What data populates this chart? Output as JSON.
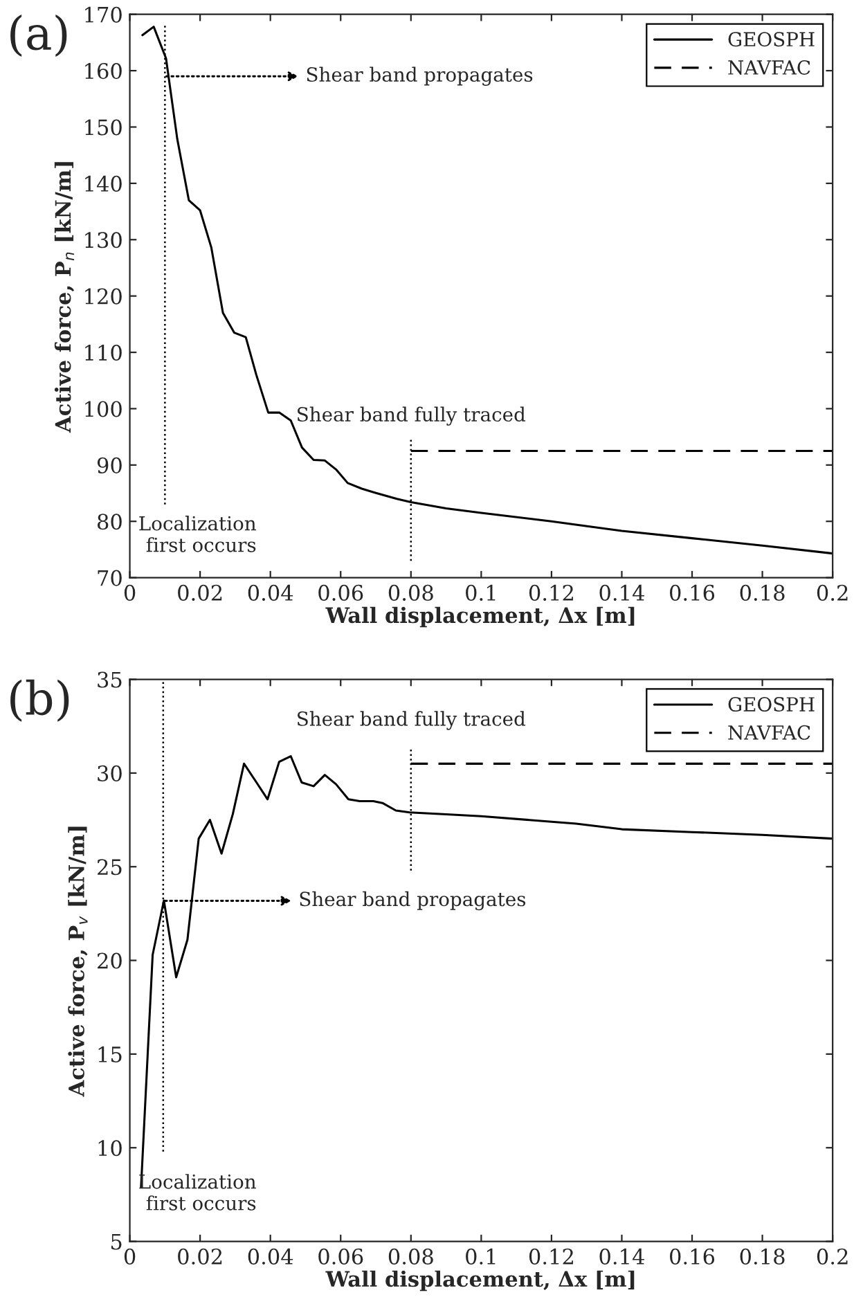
{
  "chart_data": [
    {
      "type": "line",
      "xlabel": "Wall displacement, Δx [m]",
      "ylabel": "Active force, P$_{n}$ [kN/m]",
      "series": [
        {
          "name": "GEOSPH",
          "color": "#000000",
          "line_style": "solid",
          "x": [
            0.0036,
            0.0068,
            0.0103,
            0.0135,
            0.0168,
            0.02,
            0.0232,
            0.0265,
            0.0297,
            0.033,
            0.036,
            0.0394,
            0.0426,
            0.0458,
            0.049,
            0.0523,
            0.0555,
            0.0587,
            0.062,
            0.066,
            0.0697,
            0.076,
            0.08,
            0.09,
            0.1,
            0.12,
            0.14,
            0.16,
            0.18,
            0.2
          ],
          "values": [
            166.3,
            167.8,
            162.2,
            147.9,
            137.0,
            135.2,
            128.6,
            117.0,
            113.5,
            112.7,
            106.0,
            99.3,
            99.3,
            97.9,
            93.1,
            90.9,
            90.8,
            89.2,
            86.8,
            85.8,
            85.1,
            84.0,
            83.4,
            82.3,
            81.5,
            80.0,
            78.3,
            77.0,
            75.7,
            74.3
          ]
        },
        {
          "name": "NAVFAC",
          "color": "#000000",
          "line_style": "dashed",
          "x": [
            0.08,
            0.2
          ],
          "values": [
            92.5,
            92.5
          ]
        }
      ],
      "ref_lines": [
        {
          "axis": "x",
          "value": 0.01,
          "label": "Localization\nfirst occurs",
          "line_style": "dotted"
        },
        {
          "axis": "x",
          "value": 0.08,
          "label": "Shear band fully traced",
          "line_style": "dotted"
        }
      ],
      "annotations": [
        "(a)",
        "Shear band propagates"
      ],
      "xlim": [
        0,
        0.2
      ],
      "xticks": [
        0,
        0.02,
        0.04,
        0.06,
        0.08,
        0.1,
        0.12,
        0.14,
        0.16,
        0.18,
        0.2
      ],
      "ylim": [
        70,
        170
      ],
      "yticks": [
        70,
        80,
        90,
        100,
        110,
        120,
        130,
        140,
        150,
        160,
        170
      ],
      "legend": "top right",
      "grid": false
    },
    {
      "type": "line",
      "xlabel": "Wall displacement, Δx [m]",
      "ylabel": "Active force, P$_{v}$ [kN/m]",
      "series": [
        {
          "name": "GEOSPH",
          "color": "#000000",
          "line_style": "solid",
          "x": [
            0.0032,
            0.0065,
            0.0097,
            0.0132,
            0.0164,
            0.0196,
            0.0228,
            0.0261,
            0.0293,
            0.0325,
            0.0357,
            0.0392,
            0.0425,
            0.0458,
            0.0489,
            0.0523,
            0.0555,
            0.0587,
            0.0622,
            0.0654,
            0.0693,
            0.0719,
            0.0757,
            0.0796,
            0.09,
            0.1,
            0.12,
            0.127,
            0.14,
            0.16,
            0.18,
            0.2
          ],
          "values": [
            7.9,
            20.3,
            23.2,
            19.1,
            21.1,
            26.5,
            27.5,
            25.7,
            27.8,
            30.5,
            29.6,
            28.6,
            30.6,
            30.9,
            29.5,
            29.3,
            29.9,
            29.4,
            28.6,
            28.5,
            28.5,
            28.4,
            28.0,
            27.9,
            27.8,
            27.7,
            27.4,
            27.3,
            27.0,
            26.85,
            26.7,
            26.5
          ]
        },
        {
          "name": "NAVFAC",
          "color": "#000000",
          "line_style": "dashed",
          "x": [
            0.08,
            0.2
          ],
          "values": [
            30.5,
            30.5
          ]
        }
      ],
      "ref_lines": [
        {
          "axis": "x",
          "value": 0.0095,
          "label": "Localization\nfirst occurs",
          "line_style": "dotted"
        },
        {
          "axis": "x",
          "value": 0.08,
          "label": "Shear band fully traced",
          "line_style": "dotted"
        }
      ],
      "annotations": [
        "(b)",
        "Shear band propagates"
      ],
      "xlim": [
        0,
        0.2
      ],
      "xticks": [
        0,
        0.02,
        0.04,
        0.06,
        0.08,
        0.1,
        0.12,
        0.14,
        0.16,
        0.18,
        0.2
      ],
      "ylim": [
        5,
        35
      ],
      "yticks": [
        5,
        10,
        15,
        20,
        25,
        30,
        35
      ],
      "legend": "top right",
      "grid": false
    }
  ]
}
